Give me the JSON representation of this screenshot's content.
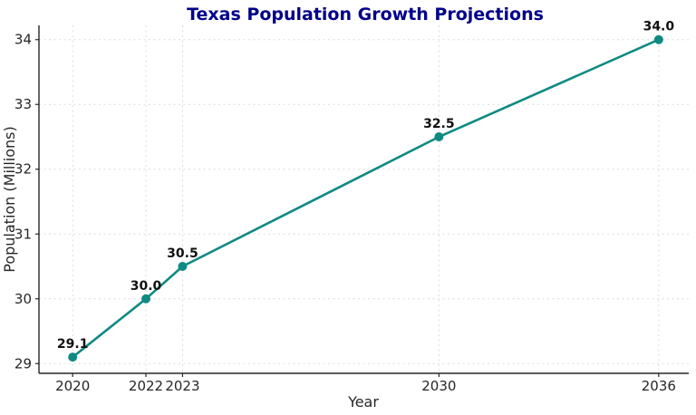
{
  "chart_data": {
    "type": "line",
    "title": "Texas Population Growth Projections",
    "xlabel": "Year",
    "ylabel": "Population (Millions)",
    "x": [
      2020,
      2022,
      2023,
      2030,
      2036
    ],
    "values": [
      29.1,
      30.0,
      30.5,
      32.5,
      34.0
    ],
    "point_labels": [
      "29.1",
      "30.0",
      "30.5",
      "32.5",
      "34.0"
    ],
    "xtick_labels": [
      "2020",
      "2022",
      "2023",
      "2030",
      "2036"
    ],
    "ytick_labels": [
      "29",
      "30",
      "31",
      "32",
      "33",
      "34"
    ],
    "xticks": [
      2020,
      2022,
      2023,
      2030,
      2036
    ],
    "yticks": [
      29,
      30,
      31,
      32,
      33,
      34
    ],
    "xlim": [
      2019.08,
      2036.82
    ],
    "ylim": [
      28.85,
      34.22
    ],
    "grid": true,
    "grid_style": "dashed",
    "legend": "none",
    "colors": {
      "line": "#0f8a83",
      "marker": "#0f8a83",
      "title": "#00008b",
      "grid": "#dcdcdc",
      "axis": "#262626",
      "tick_label": "#262626",
      "point_label": "#111111",
      "background": "#ffffff"
    }
  }
}
